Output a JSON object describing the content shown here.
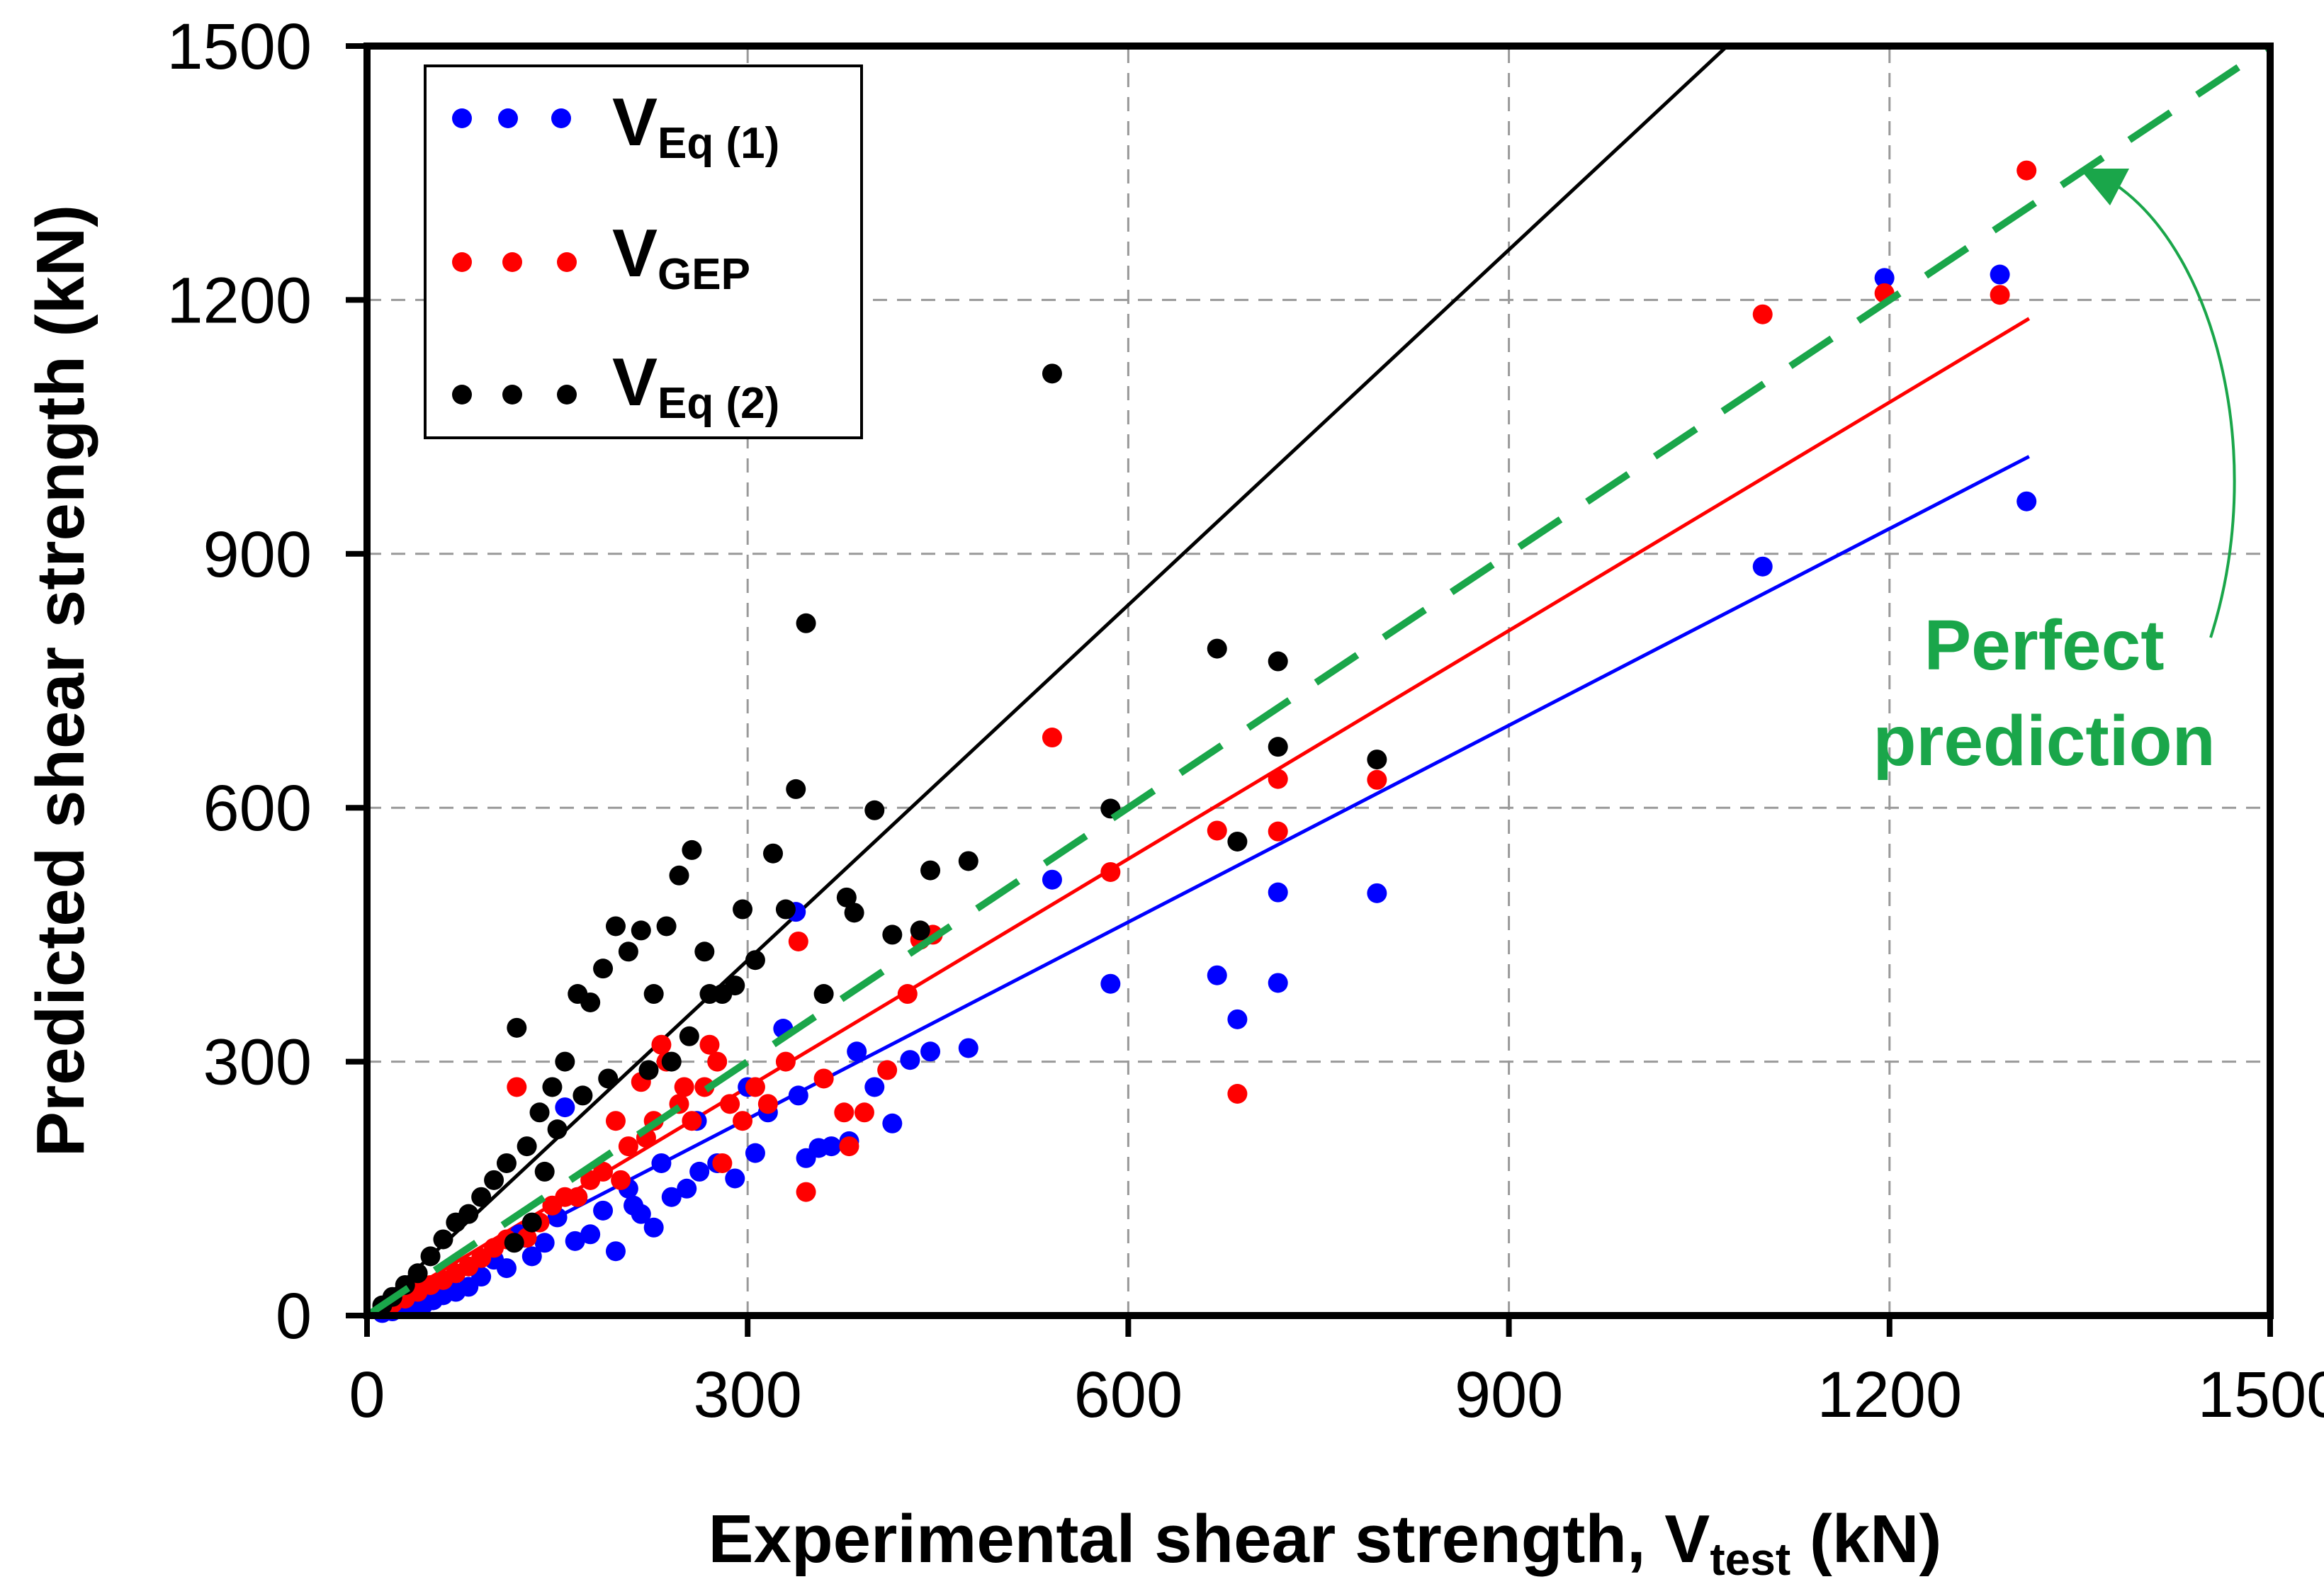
{
  "chart_data": {
    "type": "scatter",
    "xlabel_main": "Experimental shear strength, V",
    "xlabel_sub": "test",
    "xlabel_unit": " (kN)",
    "ylabel": "Predicted shear strength (kN)",
    "xlim": [
      0,
      1500
    ],
    "ylim": [
      0,
      1500
    ],
    "xticks": [
      "0",
      "300",
      "600",
      "900",
      "1200",
      "1500"
    ],
    "yticks": [
      "0",
      "300",
      "600",
      "900",
      "1200",
      "1500"
    ],
    "grid": true,
    "legend_position": "top-left",
    "legend": [
      {
        "main": "V",
        "sub": "Eq (1)",
        "color": "#0000ff"
      },
      {
        "main": "V",
        "sub": "GEP",
        "color": "#ff0000"
      },
      {
        "main": "V",
        "sub": "Eq (2)",
        "color": "#000000"
      }
    ],
    "annotation": {
      "line1": "Perfect",
      "line2": "prediction",
      "color": "#1aa64a"
    },
    "fit_lines": [
      {
        "name": "Eq (1) fit",
        "color": "#0000ff",
        "x": [
          0,
          1310
        ],
        "y": [
          0,
          1015
        ]
      },
      {
        "name": "GEP fit",
        "color": "#ff0000",
        "x": [
          0,
          1310
        ],
        "y": [
          0,
          1178
        ]
      },
      {
        "name": "Eq (2) fit",
        "color": "#000000",
        "x": [
          0,
          1072
        ],
        "y": [
          0,
          1500
        ]
      },
      {
        "name": "Perfect prediction",
        "color": "#1aa64a",
        "x": [
          0,
          1500
        ],
        "y": [
          0,
          1500
        ],
        "dashed": true
      }
    ],
    "series": [
      {
        "name": "V_Eq(1)",
        "color": "#0000ff",
        "points": [
          [
            1308,
            962
          ],
          [
            1287,
            1230
          ],
          [
            1196,
            1226
          ],
          [
            1100,
            885
          ],
          [
            796,
            499
          ],
          [
            718,
            500
          ],
          [
            718,
            393
          ],
          [
            686,
            350
          ],
          [
            670,
            402
          ],
          [
            586,
            392
          ],
          [
            540,
            515
          ],
          [
            474,
            316
          ],
          [
            444,
            312
          ],
          [
            428,
            302
          ],
          [
            414,
            227
          ],
          [
            400,
            270
          ],
          [
            386,
            312
          ],
          [
            380,
            206
          ],
          [
            366,
            200
          ],
          [
            356,
            198
          ],
          [
            346,
            186
          ],
          [
            340,
            260
          ],
          [
            338,
            477
          ],
          [
            328,
            339
          ],
          [
            316,
            240
          ],
          [
            306,
            192
          ],
          [
            290,
            162
          ],
          [
            276,
            180
          ],
          [
            262,
            170
          ],
          [
            252,
            150
          ],
          [
            240,
            140
          ],
          [
            232,
            180
          ],
          [
            226,
            104
          ],
          [
            216,
            120
          ],
          [
            206,
            150
          ],
          [
            196,
            76
          ],
          [
            186,
            124
          ],
          [
            176,
            96
          ],
          [
            166,
            140
          ],
          [
            156,
            246
          ],
          [
            150,
            116
          ],
          [
            140,
            86
          ],
          [
            130,
            70
          ],
          [
            120,
            96
          ],
          [
            110,
            56
          ],
          [
            100,
            66
          ],
          [
            90,
            46
          ],
          [
            80,
            34
          ],
          [
            70,
            28
          ],
          [
            60,
            24
          ],
          [
            52,
            18
          ],
          [
            44,
            12
          ],
          [
            36,
            10
          ],
          [
            28,
            8
          ],
          [
            20,
            5
          ],
          [
            12,
            3
          ],
          [
            210,
            130
          ],
          [
            260,
            230
          ],
          [
            300,
            270
          ],
          [
            164,
            88
          ],
          [
            124,
            92
          ]
        ]
      },
      {
        "name": "V_GEP",
        "color": "#ff0000",
        "points": [
          [
            1308,
            1353
          ],
          [
            1287,
            1206
          ],
          [
            1196,
            1208
          ],
          [
            1100,
            1183
          ],
          [
            796,
            633
          ],
          [
            718,
            634
          ],
          [
            718,
            572
          ],
          [
            686,
            262
          ],
          [
            670,
            573
          ],
          [
            586,
            524
          ],
          [
            540,
            683
          ],
          [
            446,
            450
          ],
          [
            436,
            444
          ],
          [
            426,
            380
          ],
          [
            410,
            290
          ],
          [
            392,
            240
          ],
          [
            380,
            200
          ],
          [
            376,
            240
          ],
          [
            360,
            280
          ],
          [
            346,
            146
          ],
          [
            340,
            442
          ],
          [
            330,
            300
          ],
          [
            316,
            250
          ],
          [
            306,
            270
          ],
          [
            296,
            230
          ],
          [
            286,
            250
          ],
          [
            276,
            300
          ],
          [
            266,
            270
          ],
          [
            256,
            230
          ],
          [
            246,
            250
          ],
          [
            236,
            300
          ],
          [
            226,
            230
          ],
          [
            216,
            276
          ],
          [
            206,
            200
          ],
          [
            196,
            230
          ],
          [
            186,
            170
          ],
          [
            176,
            160
          ],
          [
            166,
            140
          ],
          [
            156,
            140
          ],
          [
            146,
            130
          ],
          [
            136,
            110
          ],
          [
            126,
            92
          ],
          [
            118,
            270
          ],
          [
            110,
            90
          ],
          [
            100,
            80
          ],
          [
            90,
            68
          ],
          [
            80,
            58
          ],
          [
            70,
            50
          ],
          [
            60,
            42
          ],
          [
            50,
            36
          ],
          [
            40,
            28
          ],
          [
            30,
            20
          ],
          [
            20,
            14
          ],
          [
            12,
            8
          ],
          [
            250,
            270
          ],
          [
            270,
            320
          ],
          [
            280,
            180
          ],
          [
            200,
            160
          ],
          [
            220,
            210
          ],
          [
            232,
            320
          ]
        ]
      },
      {
        "name": "V_Eq(2)",
        "color": "#000000",
        "points": [
          [
            796,
            657
          ],
          [
            718,
            773
          ],
          [
            718,
            672
          ],
          [
            686,
            560
          ],
          [
            670,
            788
          ],
          [
            586,
            599
          ],
          [
            540,
            1113
          ],
          [
            474,
            537
          ],
          [
            444,
            526
          ],
          [
            436,
            455
          ],
          [
            414,
            450
          ],
          [
            400,
            597
          ],
          [
            384,
            476
          ],
          [
            378,
            494
          ],
          [
            360,
            380
          ],
          [
            346,
            818
          ],
          [
            338,
            622
          ],
          [
            330,
            480
          ],
          [
            320,
            546
          ],
          [
            306,
            420
          ],
          [
            296,
            480
          ],
          [
            280,
            380
          ],
          [
            266,
            430
          ],
          [
            256,
            550
          ],
          [
            246,
            520
          ],
          [
            236,
            460
          ],
          [
            226,
            380
          ],
          [
            216,
            455
          ],
          [
            206,
            430
          ],
          [
            196,
            460
          ],
          [
            186,
            410
          ],
          [
            176,
            370
          ],
          [
            166,
            380
          ],
          [
            156,
            300
          ],
          [
            146,
            270
          ],
          [
            136,
            240
          ],
          [
            126,
            200
          ],
          [
            118,
            340
          ],
          [
            110,
            180
          ],
          [
            100,
            160
          ],
          [
            90,
            140
          ],
          [
            80,
            120
          ],
          [
            70,
            110
          ],
          [
            60,
            90
          ],
          [
            50,
            70
          ],
          [
            40,
            50
          ],
          [
            30,
            36
          ],
          [
            20,
            22
          ],
          [
            12,
            12
          ],
          [
            290,
            390
          ],
          [
            270,
            380
          ],
          [
            254,
            330
          ],
          [
            240,
            300
          ],
          [
            222,
            290
          ],
          [
            190,
            280
          ],
          [
            170,
            260
          ],
          [
            150,
            220
          ],
          [
            140,
            170
          ],
          [
            130,
            110
          ],
          [
            116,
            86
          ]
        ]
      }
    ]
  }
}
